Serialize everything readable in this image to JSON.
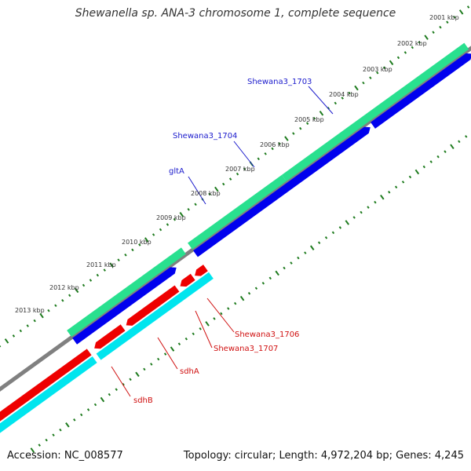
{
  "title": "Shewanella sp. ANA-3 chromosome 1, complete sequence",
  "footer": {
    "accession": "Accession: NC_008577",
    "summary": "Topology: circular; Length: 4,972,204 bp; Genes: 4,245"
  },
  "colors": {
    "tick": "#1e7b1e",
    "backbone": "#808080",
    "forward_cds": "#0000ee",
    "forward_feature": "#29e08f",
    "reverse_cds": "#ee0000",
    "reverse_feature": "#00e5ee",
    "forward_label": "#1a1acc",
    "reverse_label": "#d01010"
  },
  "kbp_ticks": [
    "2001 kbp",
    "2002 kbp",
    "2003 kbp",
    "2004 kbp",
    "2005 kbp",
    "2006 kbp",
    "2007 kbp",
    "2008 kbp",
    "2009 kbp",
    "2010 kbp",
    "2011 kbp",
    "2012 kbp",
    "2013 kbp"
  ],
  "gene_labels": {
    "forward": [
      "Shewana3_1703",
      "Shewana3_1704",
      "gltA"
    ],
    "reverse": [
      "Shewana3_1706",
      "Shewana3_1707",
      "sdhA",
      "sdhB"
    ]
  }
}
